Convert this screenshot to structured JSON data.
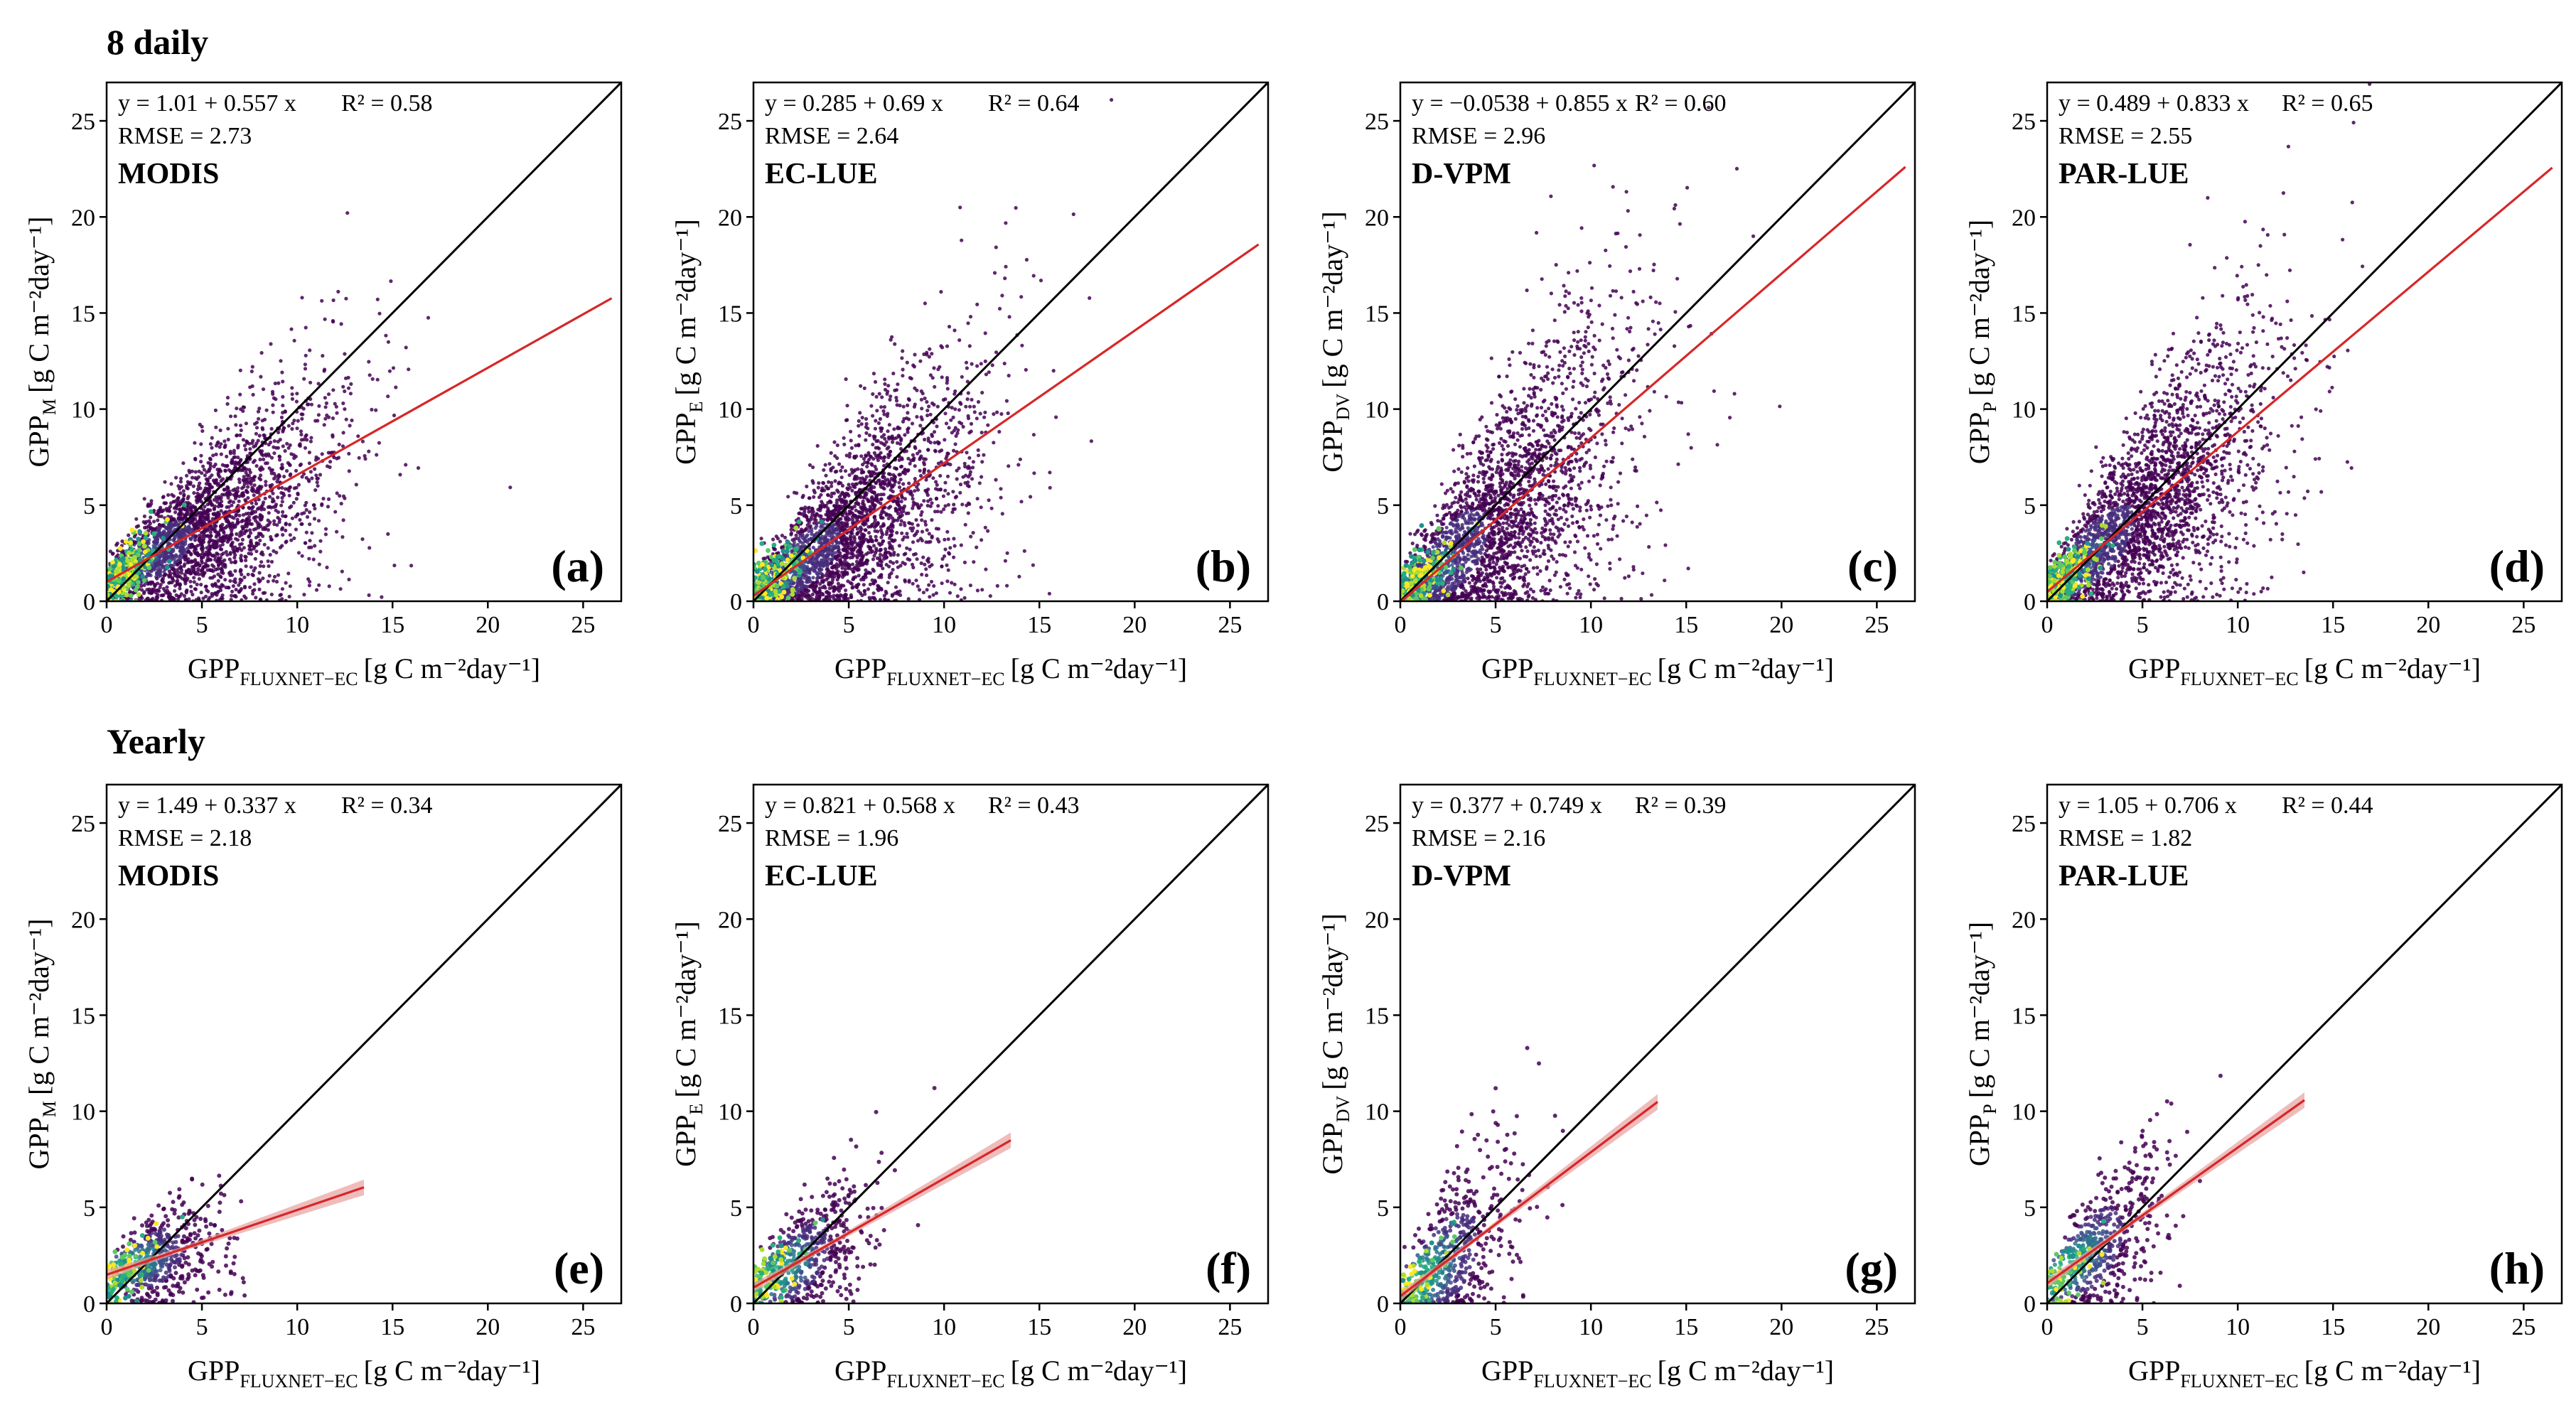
{
  "row_titles": [
    "8 daily",
    "Yearly"
  ],
  "chart_data": [
    {
      "type": "scatter",
      "panel_label": "(a)",
      "model": "MODIS",
      "equation": "y = 1.01 + 0.557 x",
      "r2": "R² = 0.58",
      "rmse": "RMSE = 2.73",
      "xlabel": {
        "main": "GPP",
        "sub": "FLUXNET−EC",
        "unit": "[g C m⁻²day⁻¹]"
      },
      "ylabel": {
        "main": "GPP",
        "sub": "M",
        "unit": "[g C m⁻²day⁻¹]"
      },
      "xlim": [
        0,
        27
      ],
      "ylim": [
        0,
        27
      ],
      "xticks": [
        0,
        5,
        10,
        15,
        20,
        25
      ],
      "yticks": [
        0,
        5,
        10,
        15,
        20,
        25
      ],
      "fit": {
        "intercept": 1.01,
        "slope": 0.557,
        "x_range": [
          0,
          26.5
        ]
      },
      "scale": "8daily",
      "n_points": 2600,
      "spread": 1.0
    },
    {
      "type": "scatter",
      "panel_label": "(b)",
      "model": "EC-LUE",
      "equation": "y = 0.285 + 0.69 x",
      "r2": "R² = 0.64",
      "rmse": "RMSE = 2.64",
      "xlabel": {
        "main": "GPP",
        "sub": "FLUXNET−EC",
        "unit": "[g C m⁻²day⁻¹]"
      },
      "ylabel": {
        "main": "GPP",
        "sub": "E",
        "unit": "[g C m⁻²day⁻¹]"
      },
      "xlim": [
        0,
        27
      ],
      "ylim": [
        0,
        27
      ],
      "xticks": [
        0,
        5,
        10,
        15,
        20,
        25
      ],
      "yticks": [
        0,
        5,
        10,
        15,
        20,
        25
      ],
      "fit": {
        "intercept": 0.285,
        "slope": 0.69,
        "x_range": [
          0,
          26.5
        ]
      },
      "scale": "8daily",
      "n_points": 2600,
      "spread": 1.15
    },
    {
      "type": "scatter",
      "panel_label": "(c)",
      "model": "D-VPM",
      "equation": "y = −0.0538 + 0.855 x",
      "r2": "R² = 0.60",
      "rmse": "RMSE = 2.96",
      "xlabel": {
        "main": "GPP",
        "sub": "FLUXNET−EC",
        "unit": "[g C m⁻²day⁻¹]"
      },
      "ylabel": {
        "main": "GPP",
        "sub": "DV",
        "unit": "[g C m⁻²day⁻¹]"
      },
      "xlim": [
        0,
        27
      ],
      "ylim": [
        0,
        27
      ],
      "xticks": [
        0,
        5,
        10,
        15,
        20,
        25
      ],
      "yticks": [
        0,
        5,
        10,
        15,
        20,
        25
      ],
      "fit": {
        "intercept": -0.0538,
        "slope": 0.855,
        "x_range": [
          0,
          26.5
        ]
      },
      "scale": "8daily",
      "n_points": 2600,
      "spread": 1.45
    },
    {
      "type": "scatter",
      "panel_label": "(d)",
      "model": "PAR-LUE",
      "equation": "y = 0.489 + 0.833 x",
      "r2": "R² = 0.65",
      "rmse": "RMSE = 2.55",
      "xlabel": {
        "main": "GPP",
        "sub": "FLUXNET−EC",
        "unit": "[g C m⁻²day⁻¹]"
      },
      "ylabel": {
        "main": "GPP",
        "sub": "P",
        "unit": "[g C m⁻²day⁻¹]"
      },
      "xlim": [
        0,
        27
      ],
      "ylim": [
        0,
        27
      ],
      "xticks": [
        0,
        5,
        10,
        15,
        20,
        25
      ],
      "yticks": [
        0,
        5,
        10,
        15,
        20,
        25
      ],
      "fit": {
        "intercept": 0.489,
        "slope": 0.833,
        "x_range": [
          0,
          26.5
        ]
      },
      "scale": "8daily",
      "n_points": 2600,
      "spread": 1.25
    },
    {
      "type": "scatter",
      "panel_label": "(e)",
      "model": "MODIS",
      "equation": "y = 1.49 + 0.337 x",
      "r2": "R² = 0.34",
      "rmse": "RMSE = 2.18",
      "xlabel": {
        "main": "GPP",
        "sub": "FLUXNET−EC",
        "unit": "[g C m⁻²day⁻¹]"
      },
      "ylabel": {
        "main": "GPP",
        "sub": "M",
        "unit": "[g C m⁻²day⁻¹]"
      },
      "xlim": [
        0,
        27
      ],
      "ylim": [
        0,
        27
      ],
      "xticks": [
        0,
        5,
        10,
        15,
        20,
        25
      ],
      "yticks": [
        0,
        5,
        10,
        15,
        20,
        25
      ],
      "fit": {
        "intercept": 1.49,
        "slope": 0.337,
        "x_range": [
          0,
          13.5
        ]
      },
      "scale": "yearly",
      "n_points": 520,
      "spread": 0.9
    },
    {
      "type": "scatter",
      "panel_label": "(f)",
      "model": "EC-LUE",
      "equation": "y = 0.821 + 0.568 x",
      "r2": "R² = 0.43",
      "rmse": "RMSE = 1.96",
      "xlabel": {
        "main": "GPP",
        "sub": "FLUXNET−EC",
        "unit": "[g C m⁻²day⁻¹]"
      },
      "ylabel": {
        "main": "GPP",
        "sub": "E",
        "unit": "[g C m⁻²day⁻¹]"
      },
      "xlim": [
        0,
        27
      ],
      "ylim": [
        0,
        27
      ],
      "xticks": [
        0,
        5,
        10,
        15,
        20,
        25
      ],
      "yticks": [
        0,
        5,
        10,
        15,
        20,
        25
      ],
      "fit": {
        "intercept": 0.821,
        "slope": 0.568,
        "x_range": [
          0,
          13.5
        ]
      },
      "scale": "yearly",
      "n_points": 520,
      "spread": 1.1
    },
    {
      "type": "scatter",
      "panel_label": "(g)",
      "model": "D-VPM",
      "equation": "y = 0.377 + 0.749 x",
      "r2": "R² = 0.39",
      "rmse": "RMSE = 2.16",
      "xlabel": {
        "main": "GPP",
        "sub": "FLUXNET−EC",
        "unit": "[g C m⁻²day⁻¹]"
      },
      "ylabel": {
        "main": "GPP",
        "sub": "DV",
        "unit": "[g C m⁻²day⁻¹]"
      },
      "xlim": [
        0,
        27
      ],
      "ylim": [
        0,
        27
      ],
      "xticks": [
        0,
        5,
        10,
        15,
        20,
        25
      ],
      "yticks": [
        0,
        5,
        10,
        15,
        20,
        25
      ],
      "fit": {
        "intercept": 0.377,
        "slope": 0.749,
        "x_range": [
          0,
          13.5
        ]
      },
      "scale": "yearly",
      "n_points": 520,
      "spread": 1.4
    },
    {
      "type": "scatter",
      "panel_label": "(h)",
      "model": "PAR-LUE",
      "equation": "y = 1.05 + 0.706 x",
      "r2": "R² = 0.44",
      "rmse": "RMSE = 1.82",
      "xlabel": {
        "main": "GPP",
        "sub": "FLUXNET−EC",
        "unit": "[g C m⁻²day⁻¹]"
      },
      "ylabel": {
        "main": "GPP",
        "sub": "P",
        "unit": "[g C m⁻²day⁻¹]"
      },
      "xlim": [
        0,
        27
      ],
      "ylim": [
        0,
        27
      ],
      "xticks": [
        0,
        5,
        10,
        15,
        20,
        25
      ],
      "yticks": [
        0,
        5,
        10,
        15,
        20,
        25
      ],
      "fit": {
        "intercept": 1.05,
        "slope": 0.706,
        "x_range": [
          0,
          13.5
        ]
      },
      "scale": "yearly",
      "n_points": 520,
      "spread": 1.2
    }
  ],
  "colors": {
    "fit_line": "#d62728",
    "one_to_one": "#000000",
    "ci_band": "#e8a0a0",
    "viridis": [
      "#440154",
      "#472d7b",
      "#3b528b",
      "#2c728e",
      "#21918c",
      "#28ae80",
      "#5ec962",
      "#addc30",
      "#fde725"
    ]
  }
}
